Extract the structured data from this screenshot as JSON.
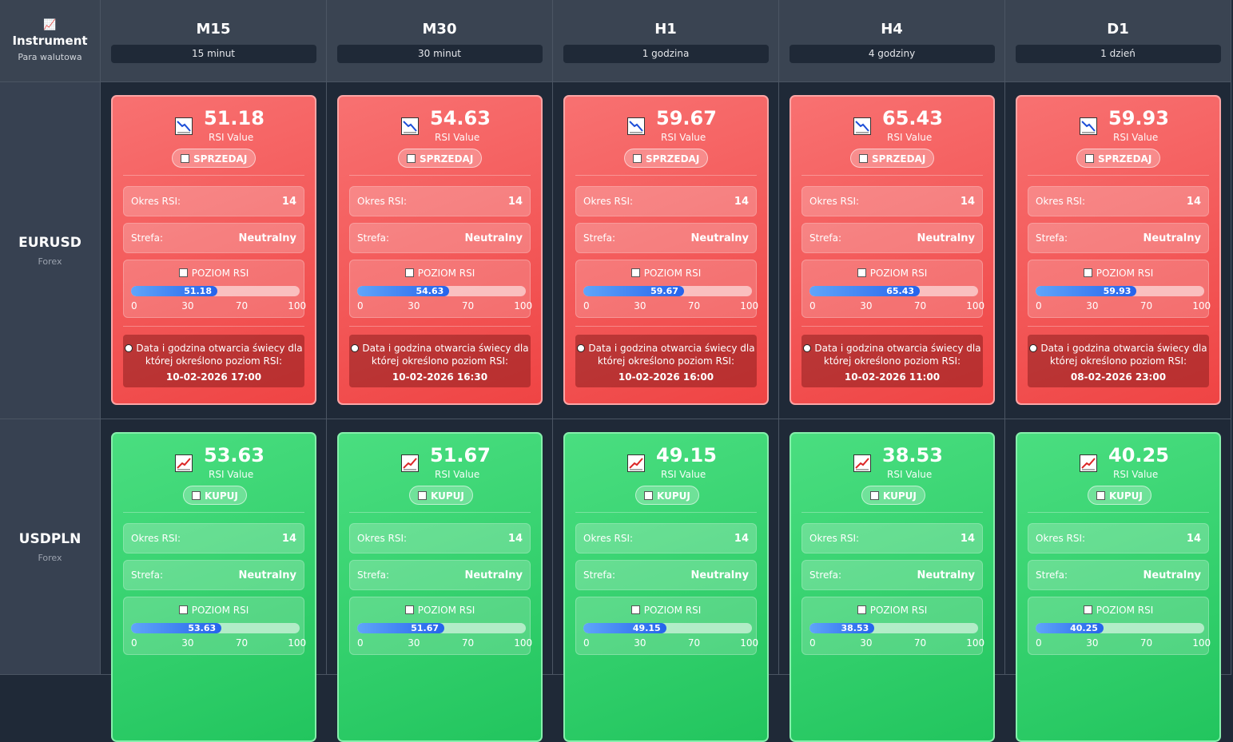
{
  "header": {
    "corner_title": "Instrument",
    "corner_sub": "Para walutowa",
    "timeframes": [
      {
        "name": "M15",
        "desc": "15 minut"
      },
      {
        "name": "M30",
        "desc": "30 minut"
      },
      {
        "name": "H1",
        "desc": "1 godzina"
      },
      {
        "name": "H4",
        "desc": "4 godziny"
      },
      {
        "name": "D1",
        "desc": "1 dzień"
      }
    ]
  },
  "labels": {
    "rsi_value": "RSI Value",
    "period": "Okres RSI:",
    "zone": "Strefa:",
    "level": "POZIOM RSI",
    "date_text": "Data i godzina otwarcia świecy dla której określono poziom RSI:",
    "ticks": [
      "0",
      "30",
      "70",
      "100"
    ]
  },
  "colors": {
    "sell": "#ef4444",
    "buy": "#22c55e",
    "progress": "#3b82f6"
  },
  "rows": [
    {
      "instrument": "EURUSD",
      "type": "Forex",
      "cards": [
        {
          "rsi": "51.18",
          "fill": 0.5118,
          "signal": "SPRZEDAJ",
          "kind": "sell",
          "period": "14",
          "zone": "Neutralny",
          "date": "10-02-2026 17:00"
        },
        {
          "rsi": "54.63",
          "fill": 0.5463,
          "signal": "SPRZEDAJ",
          "kind": "sell",
          "period": "14",
          "zone": "Neutralny",
          "date": "10-02-2026 16:30"
        },
        {
          "rsi": "59.67",
          "fill": 0.5967,
          "signal": "SPRZEDAJ",
          "kind": "sell",
          "period": "14",
          "zone": "Neutralny",
          "date": "10-02-2026 16:00"
        },
        {
          "rsi": "65.43",
          "fill": 0.6543,
          "signal": "SPRZEDAJ",
          "kind": "sell",
          "period": "14",
          "zone": "Neutralny",
          "date": "10-02-2026 11:00"
        },
        {
          "rsi": "59.93",
          "fill": 0.5993,
          "signal": "SPRZEDAJ",
          "kind": "sell",
          "period": "14",
          "zone": "Neutralny",
          "date": "08-02-2026 23:00"
        }
      ]
    },
    {
      "instrument": "USDPLN",
      "type": "Forex",
      "cards": [
        {
          "rsi": "53.63",
          "fill": 0.5363,
          "signal": "KUPUJ",
          "kind": "buy",
          "period": "14",
          "zone": "Neutralny"
        },
        {
          "rsi": "51.67",
          "fill": 0.5167,
          "signal": "KUPUJ",
          "kind": "buy",
          "period": "14",
          "zone": "Neutralny"
        },
        {
          "rsi": "49.15",
          "fill": 0.4915,
          "signal": "KUPUJ",
          "kind": "buy",
          "period": "14",
          "zone": "Neutralny"
        },
        {
          "rsi": "38.53",
          "fill": 0.3853,
          "signal": "KUPUJ",
          "kind": "buy",
          "period": "14",
          "zone": "Neutralny"
        },
        {
          "rsi": "40.25",
          "fill": 0.4025,
          "signal": "KUPUJ",
          "kind": "buy",
          "period": "14",
          "zone": "Neutralny"
        }
      ]
    }
  ]
}
